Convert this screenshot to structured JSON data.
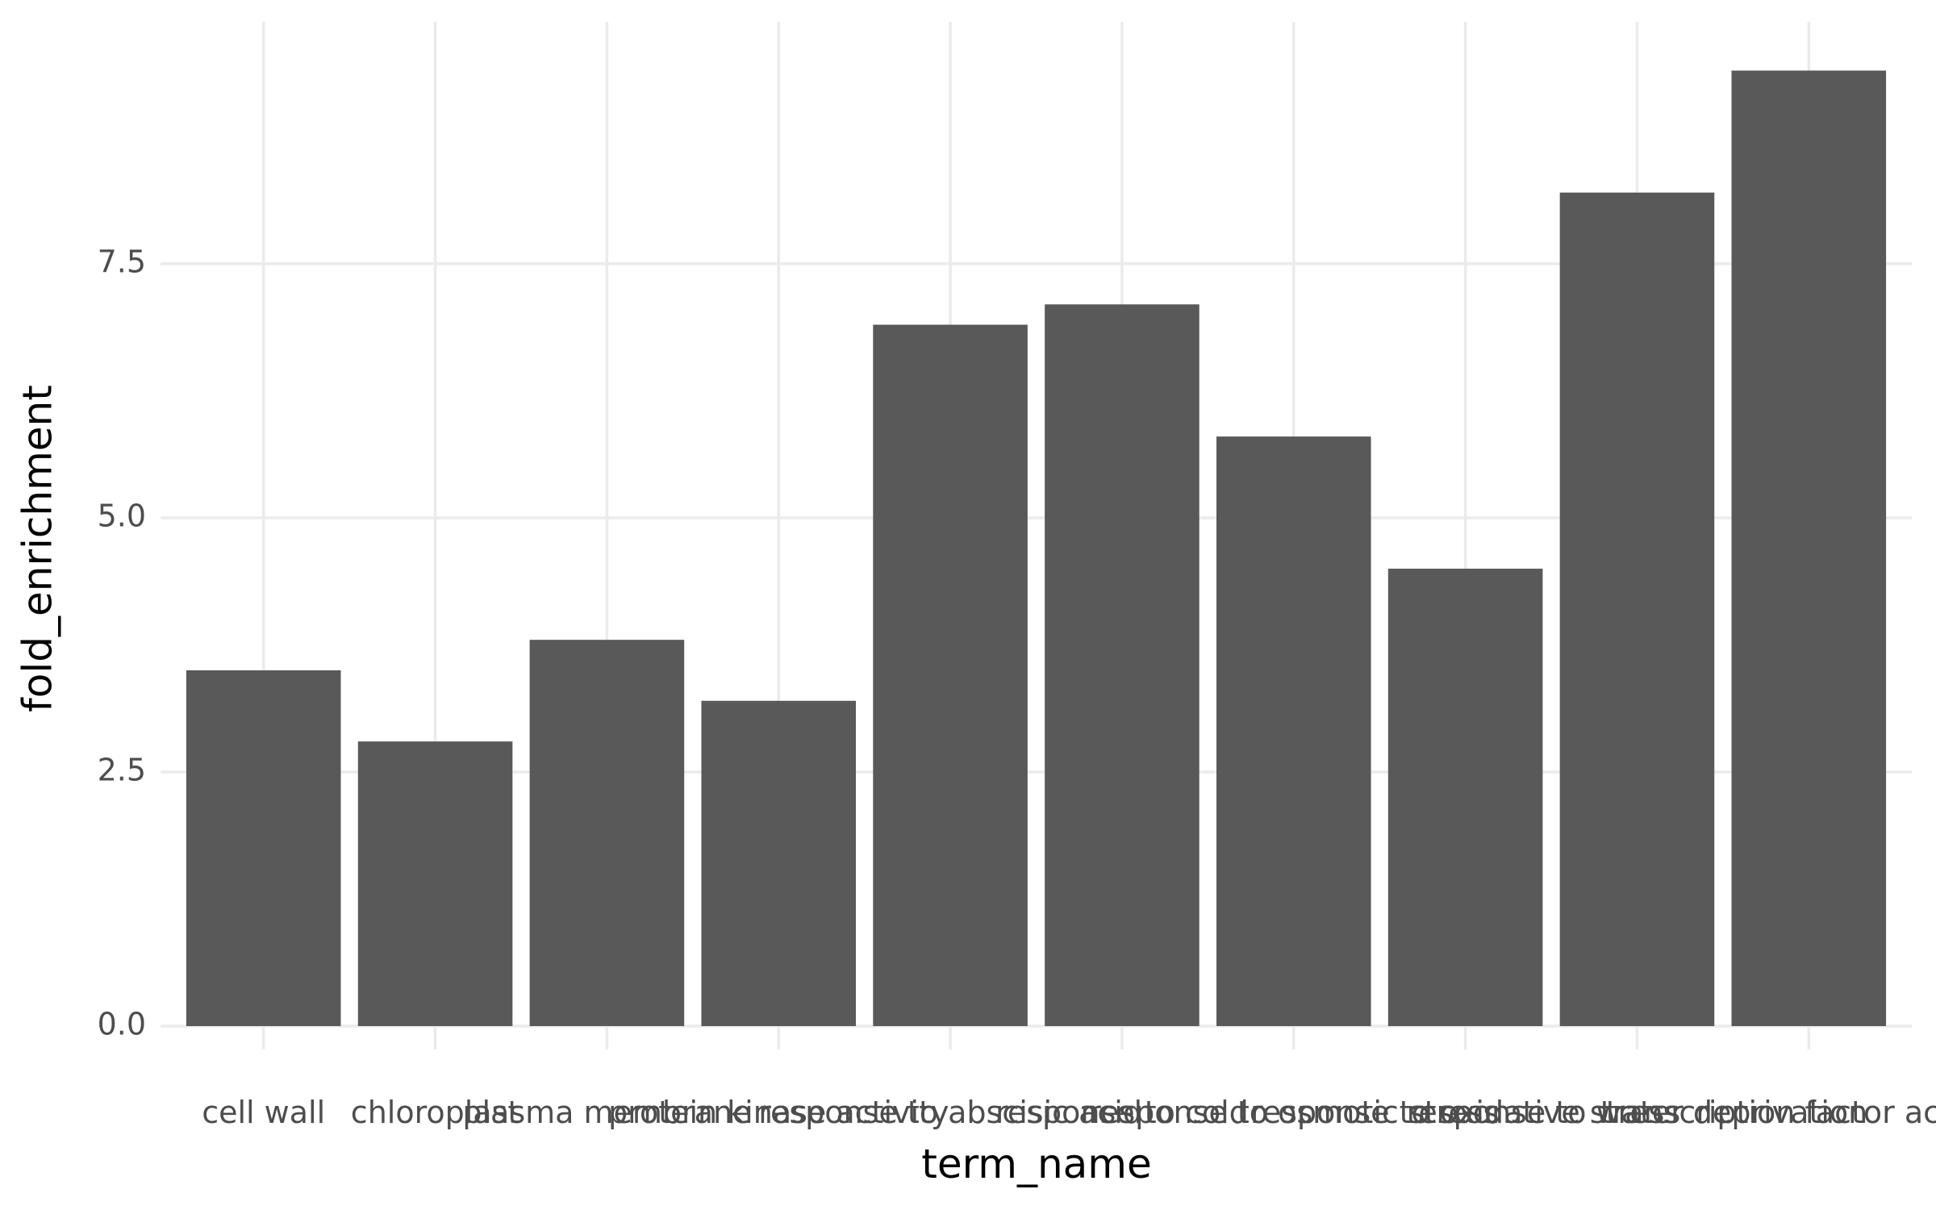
{
  "chart_data": {
    "type": "bar",
    "x_label": "term_name",
    "y_label": "fold_enrichment",
    "categories": [
      "cell wall",
      "chloroplast",
      "plasma membrane",
      "protein kinase activity",
      "response to abscisic acid",
      "response to cold",
      "response to osmotic stress",
      "response to oxidative stress",
      "response to water deprivation",
      "transcription factor activity"
    ],
    "values": [
      3.5,
      2.8,
      3.8,
      3.2,
      6.9,
      7.1,
      5.8,
      4.5,
      8.2,
      9.4
    ],
    "color": "#595959",
    "ylim": [
      -0.23,
      9.88
    ],
    "yticks": [
      {
        "value": 0,
        "label": "0.0"
      },
      2.5,
      {
        "value": 5,
        "label": "5.0"
      },
      7.5
    ],
    "grid": true
  }
}
